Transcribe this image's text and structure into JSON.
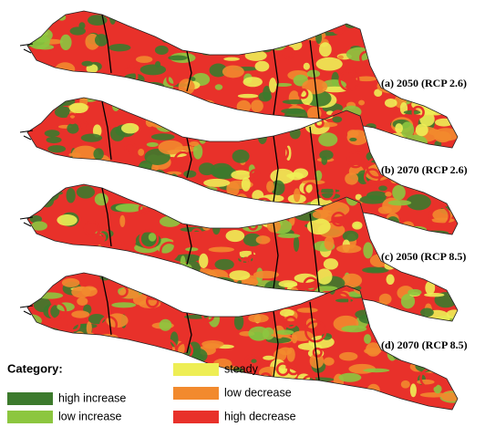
{
  "panels": [
    {
      "label": "(a) 2050 (RCP 2.6)"
    },
    {
      "label": "(b) 2070 (RCP 2.6)"
    },
    {
      "label": "(c) 2050 (RCP 8.5)"
    },
    {
      "label": "(d) 2070 (RCP 8.5)"
    }
  ],
  "legend": {
    "title": "Category:",
    "items": [
      {
        "label": "high increase",
        "color": "#3c7a2c"
      },
      {
        "label": "low increase",
        "color": "#8cc63f"
      },
      {
        "label": "steady",
        "color": "#eeee55"
      },
      {
        "label": "low decrease",
        "color": "#f28a2e"
      },
      {
        "label": "high decrease",
        "color": "#e8312a"
      }
    ]
  }
}
